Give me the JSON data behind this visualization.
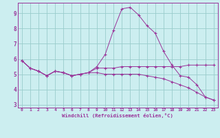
{
  "xlabel": "Windchill (Refroidissement éolien,°C)",
  "bg_color": "#cceef0",
  "grid_color": "#99cccc",
  "line_color": "#993399",
  "spine_color": "#993399",
  "tick_color": "#993399",
  "xlim": [
    -0.5,
    23.5
  ],
  "ylim": [
    2.8,
    9.7
  ],
  "xticks": [
    0,
    1,
    2,
    3,
    4,
    5,
    6,
    7,
    8,
    9,
    10,
    11,
    12,
    13,
    14,
    15,
    16,
    17,
    18,
    19,
    20,
    21,
    22,
    23
  ],
  "yticks": [
    3,
    4,
    5,
    6,
    7,
    8,
    9
  ],
  "curve_peak_x": [
    0,
    1,
    2,
    3,
    4,
    5,
    6,
    7,
    8,
    9,
    10,
    11,
    12,
    13,
    14,
    15,
    16,
    17,
    18,
    19,
    20,
    21,
    22,
    23
  ],
  "curve_peak_y": [
    5.9,
    5.4,
    5.2,
    4.9,
    5.2,
    5.1,
    4.9,
    5.0,
    5.1,
    5.5,
    6.3,
    7.9,
    9.3,
    9.4,
    8.9,
    8.2,
    7.7,
    6.5,
    5.6,
    4.9,
    4.8,
    4.3,
    3.5,
    3.3
  ],
  "curve_flat_x": [
    0,
    1,
    2,
    3,
    4,
    5,
    6,
    7,
    8,
    9,
    10,
    11,
    12,
    13,
    14,
    15,
    16,
    17,
    18,
    19,
    20,
    21,
    22,
    23
  ],
  "curve_flat_y": [
    5.9,
    5.4,
    5.2,
    4.9,
    5.2,
    5.1,
    4.9,
    5.0,
    5.1,
    5.4,
    5.4,
    5.4,
    5.5,
    5.5,
    5.5,
    5.5,
    5.5,
    5.5,
    5.5,
    5.5,
    5.6,
    5.6,
    5.6,
    5.6
  ],
  "curve_low_x": [
    0,
    1,
    2,
    3,
    4,
    5,
    6,
    7,
    8,
    9,
    10,
    11,
    12,
    13,
    14,
    15,
    16,
    17,
    18,
    19,
    20,
    21,
    22,
    23
  ],
  "curve_low_y": [
    5.9,
    5.4,
    5.2,
    4.9,
    5.2,
    5.1,
    4.9,
    5.0,
    5.1,
    5.1,
    5.0,
    5.0,
    5.0,
    5.0,
    5.0,
    4.9,
    4.8,
    4.7,
    4.5,
    4.3,
    4.1,
    3.8,
    3.5,
    3.3
  ]
}
